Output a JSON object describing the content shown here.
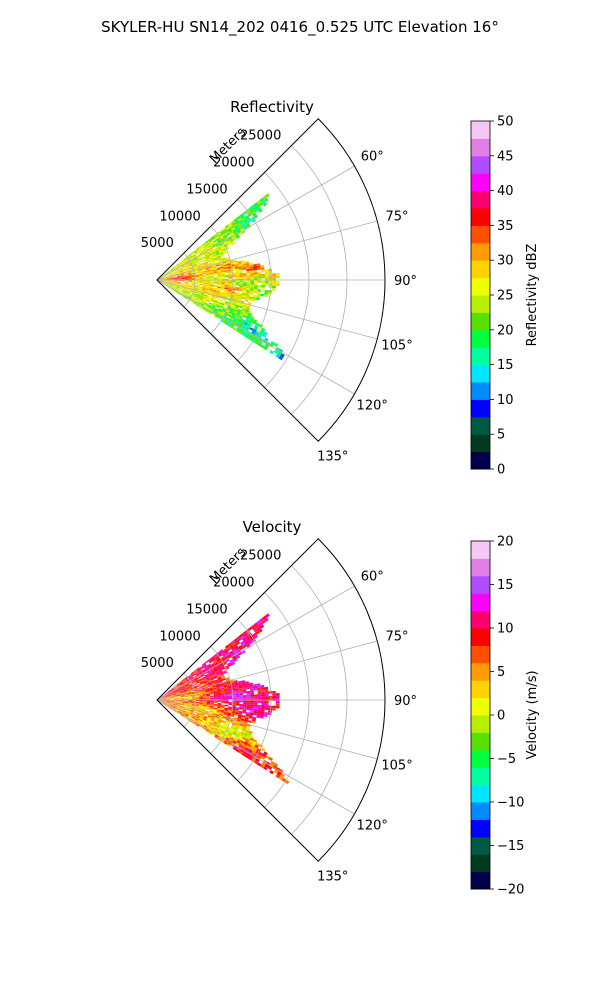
{
  "figure": {
    "suptitle": "SKYLER-HU  SN14_202  0416_0.525 UTC Elevation 16°"
  },
  "chart_data": [
    {
      "type": "heatmap",
      "projection": "polar-sector",
      "title": "Reflectivity",
      "range_label": "Meters",
      "range_ticks": [
        5000,
        10000,
        15000,
        20000,
        25000
      ],
      "range_tick_labels": [
        "5000",
        "10000",
        "15000",
        "20000",
        "25000"
      ],
      "range_max_m": 30000,
      "azimuth_min_deg": 45,
      "azimuth_max_deg": 135,
      "azimuth_ticks": [
        60,
        75,
        90,
        105,
        120,
        135
      ],
      "azimuth_tick_labels": [
        "60°",
        "75°",
        "90°",
        "105°",
        "120°",
        "135°"
      ],
      "grid": true,
      "echo_extent": {
        "azimuth_deg": [
          52,
          122
        ],
        "range_m": [
          0,
          22000
        ]
      },
      "echo_cells": [
        {
          "az": 60,
          "r": 16000,
          "v": 14
        },
        {
          "az": 66,
          "r": 14000,
          "v": 22
        },
        {
          "az": 72,
          "r": 11000,
          "v": 26
        },
        {
          "az": 78,
          "r": 9000,
          "v": 31
        },
        {
          "az": 82,
          "r": 13000,
          "v": 34
        },
        {
          "az": 86,
          "r": 3000,
          "v": 38
        },
        {
          "az": 88,
          "r": 7000,
          "v": 24
        },
        {
          "az": 92,
          "r": 12000,
          "v": 22
        },
        {
          "az": 96,
          "r": 9000,
          "v": 33
        },
        {
          "az": 100,
          "r": 15000,
          "v": 18
        },
        {
          "az": 104,
          "r": 13000,
          "v": 28
        },
        {
          "az": 108,
          "r": 19000,
          "v": 33
        },
        {
          "az": 112,
          "r": 17000,
          "v": 15
        },
        {
          "az": 116,
          "r": 14000,
          "v": 14
        },
        {
          "az": 120,
          "r": 20000,
          "v": 12
        }
      ],
      "colorbar": {
        "label": "Reflectivity dBZ",
        "range": [
          0,
          50
        ],
        "ticks": [
          0,
          5,
          10,
          15,
          20,
          25,
          30,
          35,
          40,
          45,
          50
        ],
        "tick_labels": [
          "0",
          "5",
          "10",
          "15",
          "20",
          "25",
          "30",
          "35",
          "40",
          "45",
          "50"
        ],
        "colormap": [
          "#00004c",
          "#003b1f",
          "#005a46",
          "#0000ff",
          "#008cff",
          "#00e5ff",
          "#00ffa0",
          "#00ff3c",
          "#59e000",
          "#b6f000",
          "#f0ff00",
          "#ffd200",
          "#ff9a00",
          "#ff5000",
          "#ff0000",
          "#ff0070",
          "#ff00ff",
          "#b04dff",
          "#e27ee6",
          "#f6c7f4"
        ]
      }
    },
    {
      "type": "heatmap",
      "projection": "polar-sector",
      "title": "Velocity",
      "range_label": "Meters",
      "range_ticks": [
        5000,
        10000,
        15000,
        20000,
        25000
      ],
      "range_tick_labels": [
        "5000",
        "10000",
        "15000",
        "20000",
        "25000"
      ],
      "range_max_m": 30000,
      "azimuth_min_deg": 45,
      "azimuth_max_deg": 135,
      "azimuth_ticks": [
        60,
        75,
        90,
        105,
        120,
        135
      ],
      "azimuth_tick_labels": [
        "60°",
        "75°",
        "90°",
        "105°",
        "120°",
        "135°"
      ],
      "grid": true,
      "echo_extent": {
        "azimuth_deg": [
          52,
          122
        ],
        "range_m": [
          0,
          22000
        ]
      },
      "echo_cells": [
        {
          "az": 60,
          "r": 15000,
          "v": 12
        },
        {
          "az": 66,
          "r": 13000,
          "v": 14
        },
        {
          "az": 72,
          "r": 9000,
          "v": 8
        },
        {
          "az": 78,
          "r": 14000,
          "v": 13
        },
        {
          "az": 84,
          "r": 4000,
          "v": 3
        },
        {
          "az": 88,
          "r": 10000,
          "v": 15
        },
        {
          "az": 92,
          "r": 8000,
          "v": 10
        },
        {
          "az": 96,
          "r": 13000,
          "v": 14
        },
        {
          "az": 100,
          "r": 6000,
          "v": 2
        },
        {
          "az": 104,
          "r": 17000,
          "v": 16
        },
        {
          "az": 106,
          "r": 18000,
          "v": -11
        },
        {
          "az": 110,
          "r": 12000,
          "v": 1
        },
        {
          "az": 114,
          "r": 10000,
          "v": 0
        },
        {
          "az": 118,
          "r": 16000,
          "v": 9
        },
        {
          "az": 120,
          "r": 13000,
          "v": 11
        }
      ],
      "colorbar": {
        "label": "Velocity (m/s)",
        "range": [
          -20,
          20
        ],
        "ticks": [
          -20,
          -15,
          -10,
          -5,
          0,
          5,
          10,
          15,
          20
        ],
        "tick_labels": [
          "−20",
          "−15",
          "−10",
          "−5",
          "0",
          "5",
          "10",
          "15",
          "20"
        ],
        "colormap": [
          "#00004c",
          "#003b1f",
          "#005a46",
          "#0000ff",
          "#008cff",
          "#00e5ff",
          "#00ffa0",
          "#00ff3c",
          "#59e000",
          "#b6f000",
          "#f0ff00",
          "#ffd200",
          "#ff9a00",
          "#ff5000",
          "#ff0000",
          "#ff0070",
          "#ff00ff",
          "#b04dff",
          "#e27ee6",
          "#f6c7f4"
        ]
      }
    }
  ]
}
